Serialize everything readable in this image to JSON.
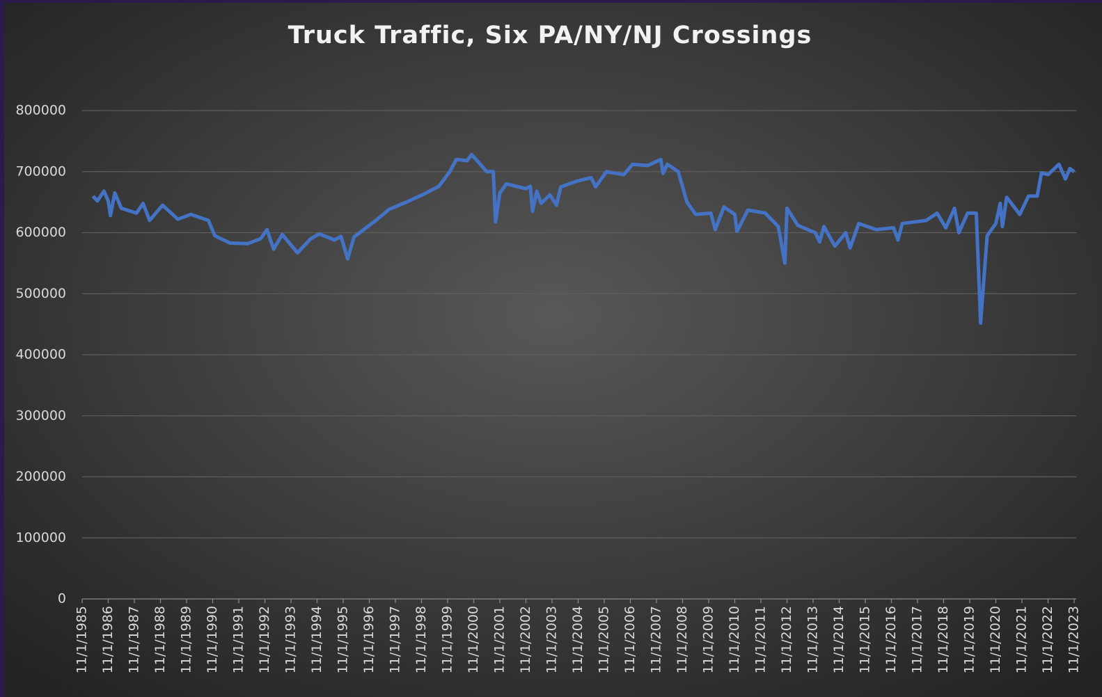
{
  "chart_data": {
    "type": "line",
    "title": "Truck Traffic, Six PA/NY/NJ Crossings",
    "xlim": [
      "11/1/1985",
      "11/1/2023"
    ],
    "xticks": [
      "11/1/1985",
      "11/1/1986",
      "11/1/1987",
      "11/1/1988",
      "11/1/1989",
      "11/1/1990",
      "11/1/1991",
      "11/1/1992",
      "11/1/1993",
      "11/1/1994",
      "11/1/1995",
      "11/1/1996",
      "11/1/1997",
      "11/1/1998",
      "11/1/1999",
      "11/1/2000",
      "11/1/2001",
      "11/1/2002",
      "11/1/2003",
      "11/1/2004",
      "11/1/2005",
      "11/1/2006",
      "11/1/2007",
      "11/1/2008",
      "11/1/2009",
      "11/1/2010",
      "11/1/2011",
      "11/1/2012",
      "11/1/2013",
      "11/1/2014",
      "11/1/2015",
      "11/1/2016",
      "11/1/2017",
      "11/1/2018",
      "11/1/2019",
      "11/1/2020",
      "11/1/2021",
      "11/1/2022",
      "11/1/2023"
    ],
    "ylim": [
      0,
      800000
    ],
    "yticks": [
      0,
      100000,
      200000,
      300000,
      400000,
      500000,
      600000,
      700000,
      800000
    ],
    "grid": true,
    "series": [
      {
        "color": "#4472c4",
        "x": [
          "4/1/1986",
          "6/1/1986",
          "9/1/1986",
          "11/1/1986",
          "12/1/1986",
          "2/1/1987",
          "5/1/1987",
          "12/1/1987",
          "3/1/1988",
          "6/1/1988",
          "12/1/1988",
          "7/1/1989",
          "1/1/1990",
          "9/1/1990",
          "12/1/1990",
          "7/1/1991",
          "3/1/1992",
          "9/1/1992",
          "12/1/1992",
          "3/1/1993",
          "7/1/1993",
          "2/1/1994",
          "8/1/1994",
          "12/1/1994",
          "7/1/1995",
          "10/1/1995",
          "1/1/1996",
          "4/1/1996",
          "2/1/1997",
          "8/1/1997",
          "4/1/1998",
          "12/1/1998",
          "7/1/1999",
          "12/1/1999",
          "3/1/2000",
          "8/1/2000",
          "10/1/2000",
          "2/1/2001",
          "5/1/2001",
          "8/1/2001",
          "9/1/2001",
          "11/1/2001",
          "2/1/2002",
          "11/1/2002",
          "1/1/2003",
          "2/1/2003",
          "4/1/2003",
          "6/1/2003",
          "10/1/2003",
          "1/1/2004",
          "3/1/2004",
          "11/1/2004",
          "5/1/2005",
          "7/1/2005",
          "12/1/2005",
          "8/1/2006",
          "12/1/2006",
          "7/1/2007",
          "1/1/2008",
          "2/1/2008",
          "4/1/2008",
          "9/1/2008",
          "1/1/2009",
          "5/1/2009",
          "12/1/2009",
          "2/1/2010",
          "6/1/2010",
          "11/1/2010",
          "12/1/2010",
          "5/1/2011",
          "1/1/2012",
          "7/1/2012",
          "10/1/2012",
          "11/1/2012",
          "4/1/2013",
          "12/1/2013",
          "2/1/2014",
          "4/1/2014",
          "9/1/2014",
          "2/1/2015",
          "4/1/2015",
          "8/1/2015",
          "4/1/2016",
          "12/1/2016",
          "2/1/2017",
          "4/1/2017",
          "3/1/2018",
          "8/1/2018",
          "12/1/2018",
          "4/1/2019",
          "6/1/2019",
          "10/1/2019",
          "2/1/2020",
          "4/1/2020",
          "7/1/2020",
          "11/1/2020",
          "1/1/2021",
          "2/1/2021",
          "4/1/2021",
          "10/1/2021",
          "2/1/2022",
          "6/1/2022",
          "8/1/2022",
          "11/1/2022",
          "4/1/2023",
          "7/1/2023",
          "9/1/2023",
          "11/1/2023"
        ],
        "values": [
          660000,
          652000,
          668000,
          652000,
          628000,
          665000,
          640000,
          632000,
          648000,
          620000,
          645000,
          622000,
          630000,
          620000,
          595000,
          583000,
          582000,
          590000,
          605000,
          573000,
          597000,
          567000,
          590000,
          598000,
          588000,
          594000,
          557000,
          593000,
          620000,
          638000,
          650000,
          663000,
          676000,
          700000,
          720000,
          718000,
          728000,
          712000,
          700000,
          700000,
          618000,
          665000,
          680000,
          672000,
          676000,
          635000,
          668000,
          648000,
          662000,
          645000,
          675000,
          685000,
          690000,
          675000,
          700000,
          695000,
          712000,
          710000,
          720000,
          697000,
          712000,
          700000,
          650000,
          630000,
          632000,
          605000,
          642000,
          630000,
          602000,
          637000,
          632000,
          610000,
          550000,
          640000,
          612000,
          600000,
          585000,
          610000,
          578000,
          600000,
          575000,
          615000,
          605000,
          608000,
          588000,
          615000,
          620000,
          632000,
          608000,
          640000,
          600000,
          632000,
          632000,
          452000,
          595000,
          615000,
          648000,
          610000,
          658000,
          630000,
          660000,
          660000,
          698000,
          695000,
          712000,
          688000,
          705000,
          700000
        ]
      }
    ]
  }
}
